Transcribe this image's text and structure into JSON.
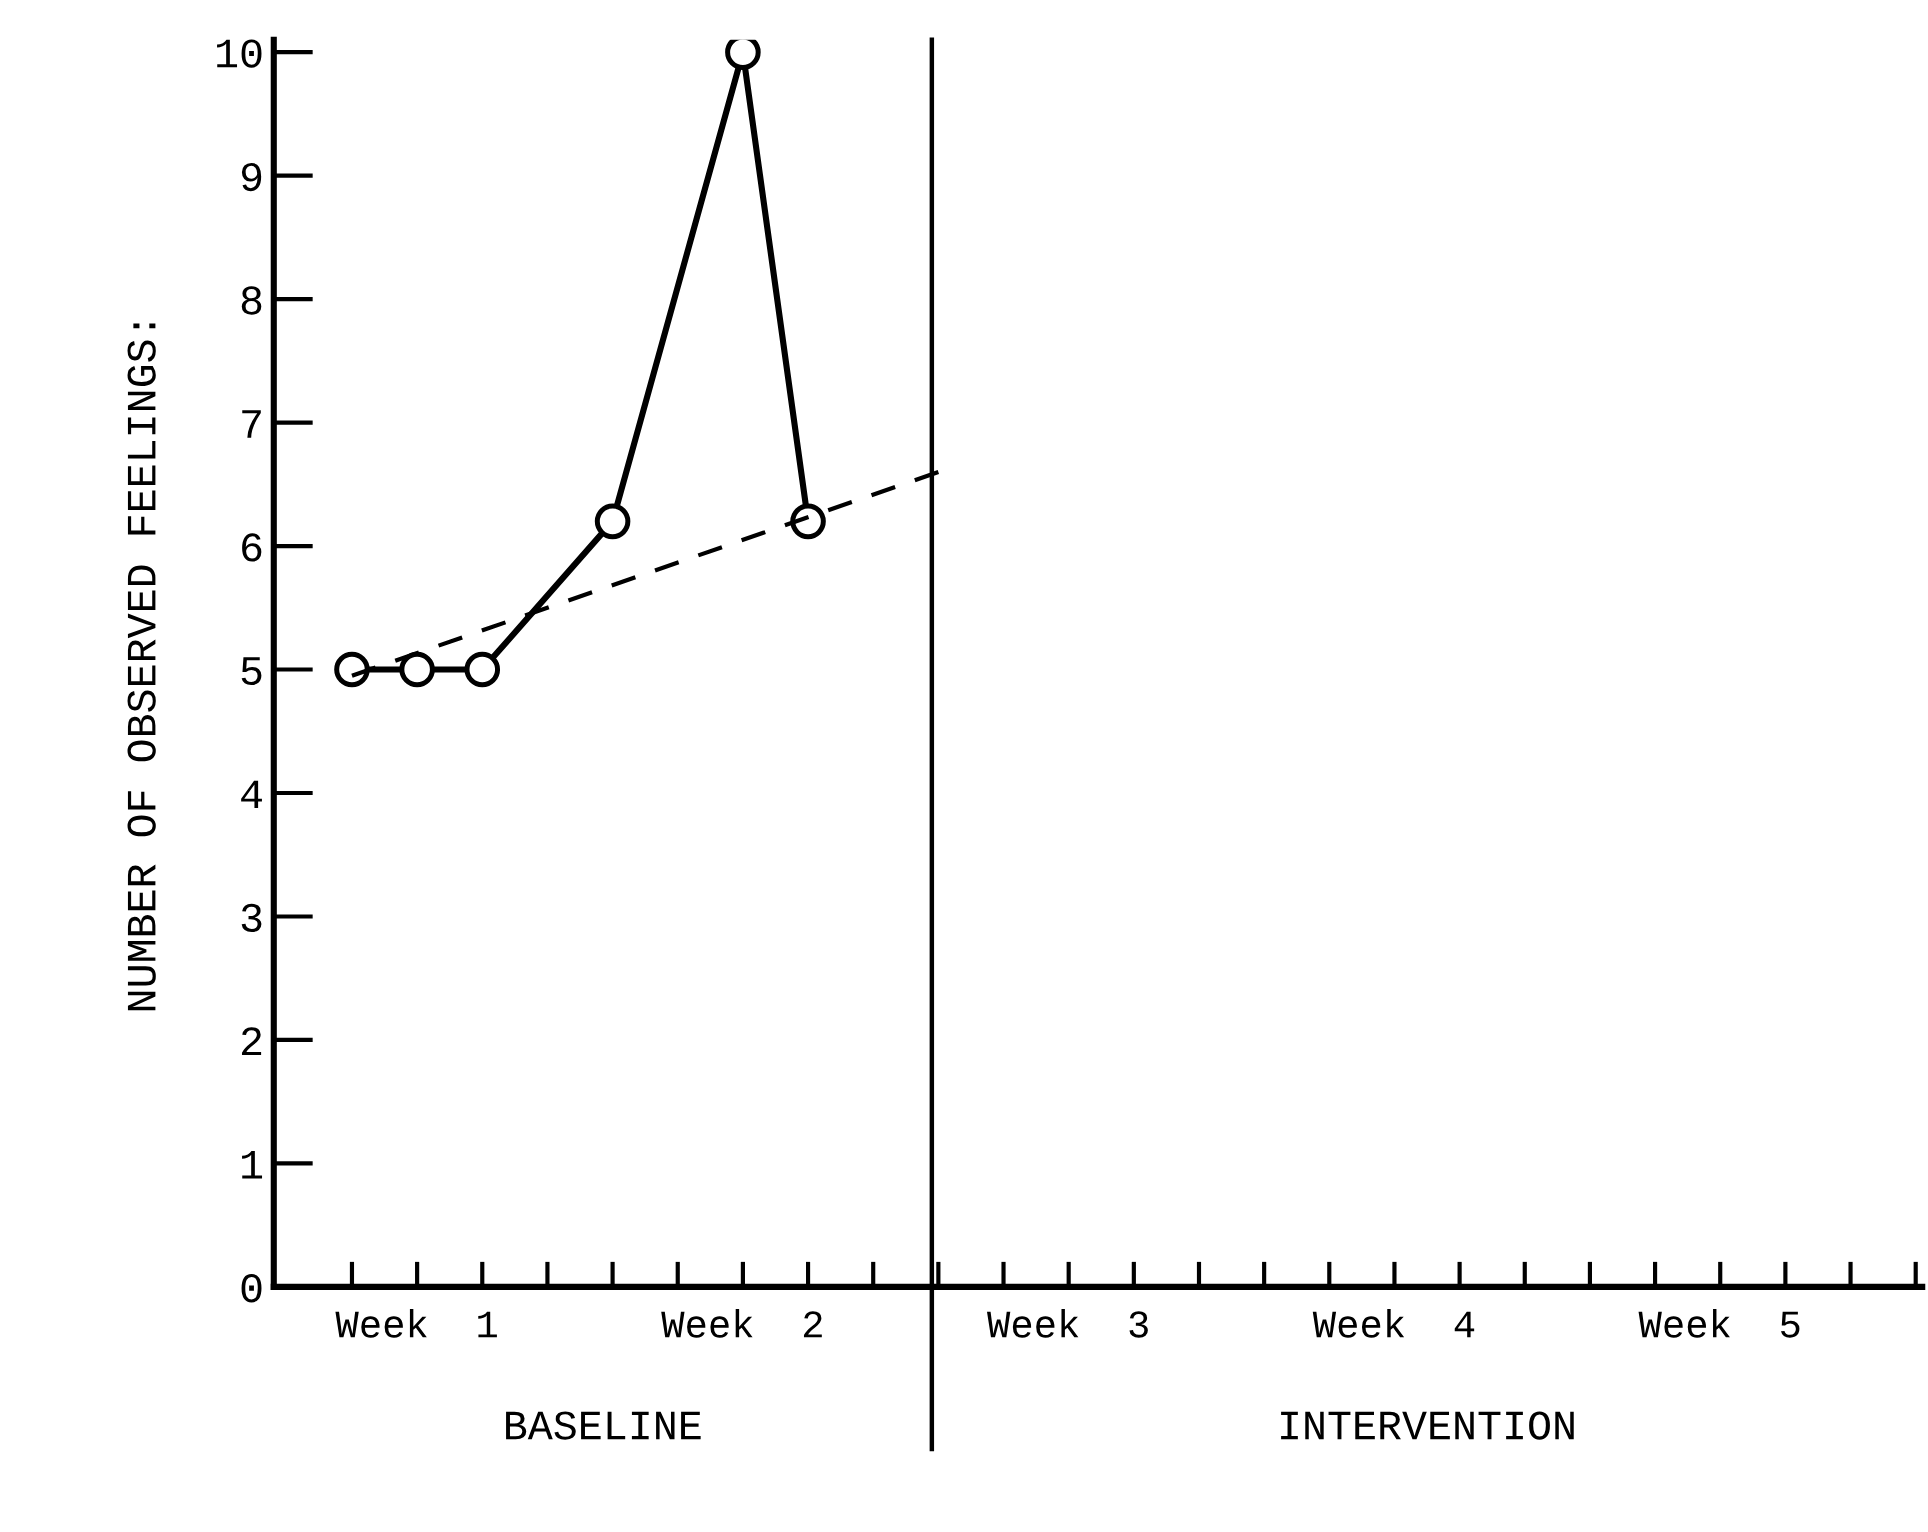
{
  "chart_data": {
    "type": "line",
    "ylabel": "NUMBER OF OBSERVED FEELINGS:",
    "categories": [
      null,
      "Week  1",
      null,
      null,
      null,
      null,
      "Week  2",
      null,
      null,
      null,
      null,
      "Week  3",
      null,
      null,
      null,
      null,
      "Week  4",
      null,
      null,
      null,
      null,
      "Week  5",
      null,
      null,
      null
    ],
    "series": [
      {
        "color": "#000000",
        "values": [
          5,
          5,
          5,
          null,
          6.2,
          null,
          10,
          6.2,
          null,
          null,
          null,
          null,
          null,
          null,
          null,
          null,
          null,
          null,
          null,
          null,
          null,
          null,
          null,
          null,
          null
        ],
        "marker": "circle",
        "line_style": "solid"
      },
      {
        "color": "#000000",
        "values": [
          4.95,
          null,
          null,
          null,
          null,
          null,
          null,
          null,
          null,
          6.6,
          null,
          null,
          null,
          null,
          null,
          null,
          null,
          null,
          null,
          null,
          null,
          null,
          null,
          null,
          null
        ],
        "marker": "none",
        "line_style": "dashed"
      }
    ],
    "ylim": [
      0,
      10.1
    ],
    "yticks": [
      0,
      1,
      2,
      3,
      4,
      5,
      6,
      7,
      8,
      9,
      10
    ],
    "annotations": [
      "BASELINE",
      "INTERVENTION"
    ],
    "legend": false
  }
}
